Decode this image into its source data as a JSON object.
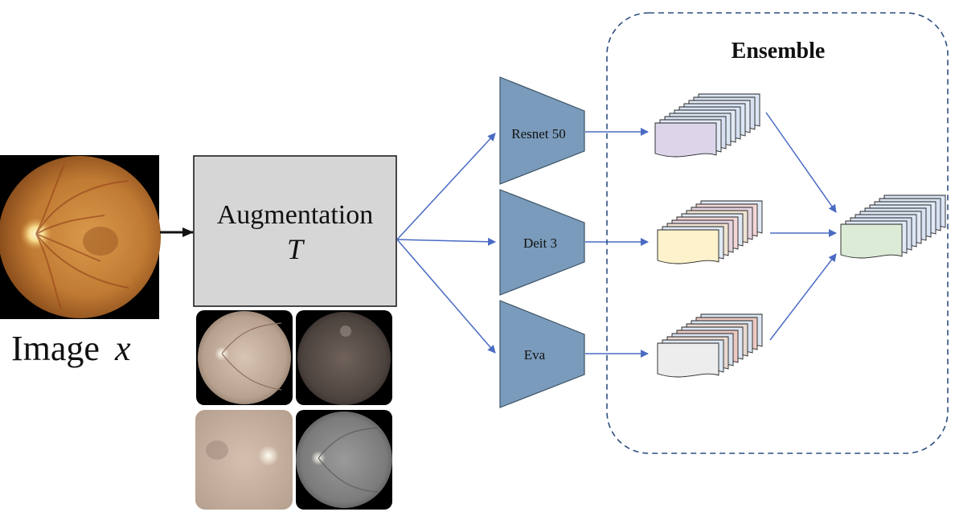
{
  "input": {
    "label_prefix": "Image",
    "label_var": "x"
  },
  "augmentation": {
    "title": "Augmentation",
    "symbol": "T",
    "samples": [
      {
        "name": "aug-sample-bright"
      },
      {
        "name": "aug-sample-dark"
      },
      {
        "name": "aug-sample-blur"
      },
      {
        "name": "aug-sample-gray"
      }
    ]
  },
  "models": [
    {
      "id": "resnet",
      "label": "Resnet 50",
      "feature_color": "#dcd5ea"
    },
    {
      "id": "deit",
      "label": "Deit 3",
      "feature_color": "#fdf2cc"
    },
    {
      "id": "eva",
      "label": "Eva",
      "feature_color": "#ededed"
    }
  ],
  "ensemble": {
    "title": "Ensemble",
    "output_color": "#dcebd6"
  },
  "colors": {
    "arrow": "#4a6bc4",
    "trapezoid_fill": "#7a9bbb",
    "trapezoid_stroke": "#3d5366",
    "box_fill": "#d6d6d6",
    "dashed_border": "#2f4f80"
  }
}
